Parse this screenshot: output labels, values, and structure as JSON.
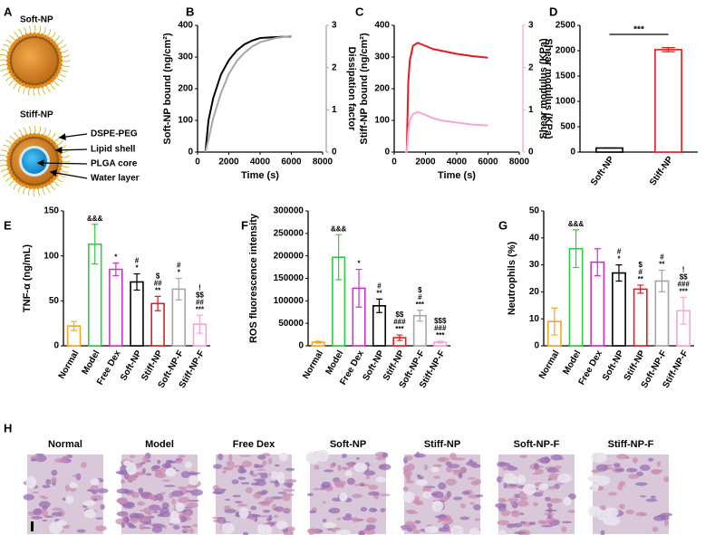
{
  "diagram": {
    "panel": "A",
    "soft_title": "Soft-NP",
    "stiff_title": "Stiff-NP",
    "labels": [
      "DSPE-PEG",
      "Lipid shell",
      "PLGA core",
      "Water layer"
    ]
  },
  "chart_data": [
    {
      "type": "line",
      "panel": "B",
      "xlabel": "Time (s)",
      "ylabel": "Soft-NP bound (ng/cm²)",
      "y2label": "Dissipation factor",
      "x": [
        500,
        700,
        1000,
        1500,
        2000,
        2500,
        3000,
        3500,
        4000,
        5000,
        6000
      ],
      "series": [
        {
          "name": "Soft-NP bound",
          "color": "#000000",
          "values": [
            0,
            100,
            170,
            245,
            290,
            320,
            340,
            352,
            360,
            363,
            365
          ]
        },
        {
          "name": "Dissipation factor",
          "color": "#a6a6a6",
          "axis": "y2",
          "values": [
            0,
            0.3,
            0.8,
            1.4,
            1.85,
            2.15,
            2.35,
            2.5,
            2.6,
            2.7,
            2.75
          ]
        }
      ],
      "xlim": [
        0,
        8000
      ],
      "xticks": [
        0,
        2000,
        4000,
        6000,
        8000
      ],
      "ylim": [
        0,
        400
      ],
      "yticks": [
        0,
        100,
        200,
        300,
        400
      ],
      "y2lim": [
        0,
        3
      ],
      "y2ticks": [
        0,
        1,
        2,
        3
      ]
    },
    {
      "type": "line",
      "panel": "C",
      "xlabel": "Time (s)",
      "ylabel": "Stiff-NP bound (ng/cm²)",
      "y2label": "Shear modulus (KPa)",
      "x": [
        700,
        800,
        900,
        1000,
        1200,
        1500,
        2000,
        2500,
        3000,
        4000,
        5000,
        6000
      ],
      "series": [
        {
          "name": "Stiff-NP bound",
          "color": "#e41a1c",
          "values": [
            0,
            0,
            220,
            290,
            335,
            345,
            335,
            325,
            320,
            310,
            303,
            298
          ]
        },
        {
          "name": "Dissipation factor",
          "color": "#f4a6d7",
          "axis": "y2",
          "values": [
            0,
            0,
            0.5,
            0.75,
            0.9,
            0.95,
            0.88,
            0.8,
            0.75,
            0.7,
            0.65,
            0.63
          ]
        }
      ],
      "xlim": [
        0,
        8000
      ],
      "xticks": [
        0,
        2000,
        4000,
        6000,
        8000
      ],
      "ylim": [
        0,
        400
      ],
      "yticks": [
        0,
        100,
        200,
        300,
        400
      ],
      "y2lim": [
        0,
        3
      ],
      "y2ticks": [
        0,
        1,
        2,
        3
      ]
    },
    {
      "type": "bar",
      "panel": "D",
      "ylabel": "Shear modulus (KPa)",
      "categories": [
        "Soft-NP",
        "Stiff-NP"
      ],
      "values": [
        80,
        2020
      ],
      "errors": [
        0,
        40
      ],
      "colors": [
        "#000000",
        "#e41a1c"
      ],
      "significance": "***",
      "ylim": [
        0,
        2500
      ],
      "yticks": [
        0,
        500,
        1000,
        1500,
        2000,
        2500
      ]
    },
    {
      "type": "bar",
      "panel": "E",
      "ylabel": "TNF-α (ng/mL)",
      "categories": [
        "Normal",
        "Model",
        "Free Dex",
        "Soft-NP",
        "Stiff-NP",
        "Soft-NP-F",
        "Stiff-NP-F"
      ],
      "values": [
        22,
        113,
        85,
        71,
        47,
        63,
        24
      ],
      "errors": [
        5,
        22,
        7,
        9,
        8,
        12,
        10
      ],
      "colors": [
        "#f5a623",
        "#2ecc40",
        "#cc33cc",
        "#000000",
        "#e41a1c",
        "#a6a6a6",
        "#f4a6d7"
      ],
      "annotations": [
        [],
        [
          "&&&"
        ],
        [
          "*"
        ],
        [
          "#",
          "*"
        ],
        [
          "$",
          "##",
          "**"
        ],
        [
          "#",
          "*"
        ],
        [
          "!",
          "$$",
          "##",
          "***"
        ]
      ],
      "ylim": [
        0,
        150
      ],
      "yticks": [
        0,
        50,
        100,
        150
      ]
    },
    {
      "type": "bar",
      "panel": "F",
      "ylabel": "ROS fluorescence intensity",
      "categories": [
        "Normal",
        "Model",
        "Free Dex",
        "Soft-NP",
        "Stiff-NP",
        "Soft-NP-F",
        "Stiff-NP-F"
      ],
      "values": [
        8000,
        197000,
        128000,
        89000,
        18000,
        67000,
        8000
      ],
      "errors": [
        2000,
        50000,
        42000,
        15000,
        6000,
        12000,
        2000
      ],
      "colors": [
        "#f5a623",
        "#2ecc40",
        "#cc33cc",
        "#000000",
        "#e41a1c",
        "#a6a6a6",
        "#f4a6d7"
      ],
      "annotations": [
        [],
        [
          "&&&"
        ],
        [
          "*"
        ],
        [
          "#",
          "**"
        ],
        [
          "$$",
          "###",
          "***"
        ],
        [
          "$",
          "#",
          "***"
        ],
        [
          "$$$",
          "###",
          "***"
        ]
      ],
      "ylim": [
        0,
        300000
      ],
      "yticks": [
        0,
        50000,
        100000,
        150000,
        200000,
        250000,
        300000
      ]
    },
    {
      "type": "bar",
      "panel": "G",
      "ylabel": "Neutrophils (%)",
      "categories": [
        "Normal",
        "Model",
        "Free Dex",
        "Soft-NP",
        "Stiff-NP",
        "Soft-NP-F",
        "Stiff-NP-F"
      ],
      "values": [
        9,
        36,
        31,
        27,
        21,
        24,
        13
      ],
      "errors": [
        5,
        7,
        5,
        3,
        1.5,
        4,
        5
      ],
      "colors": [
        "#f5a623",
        "#2ecc40",
        "#cc33cc",
        "#000000",
        "#e41a1c",
        "#a6a6a6",
        "#f4a6d7"
      ],
      "annotations": [
        [],
        [
          "&&&"
        ],
        [],
        [
          "#",
          "*"
        ],
        [
          "$",
          "#",
          "**"
        ],
        [
          "#",
          "**"
        ],
        [
          "!",
          "$$",
          "###",
          "***"
        ]
      ],
      "ylim": [
        0,
        50
      ],
      "yticks": [
        0,
        10,
        20,
        30,
        40,
        50
      ]
    }
  ],
  "histology": {
    "panel": "H",
    "titles": [
      "Normal",
      "Model",
      "Free Dex",
      "Soft-NP",
      "Stiff-NP",
      "Soft-NP-F",
      "Stiff-NP-F"
    ]
  }
}
